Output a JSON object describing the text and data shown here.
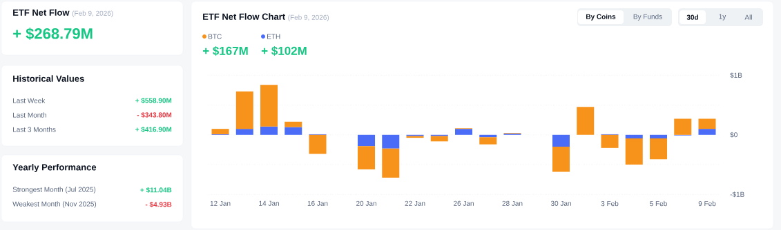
{
  "chart_data": [
    {
      "type": "other",
      "title": "ETF Net Flow",
      "subtitle": "(Feb 9, 2026)",
      "annotations": [
        "+ $268.79M"
      ]
    },
    {
      "type": "other",
      "title": "Historical Values",
      "categories": [
        "Last Week",
        "Last Month",
        "Last 3 Months"
      ],
      "annotations": [
        "+ $558.90M",
        "- $343.80M",
        "+ $416.90M"
      ]
    },
    {
      "type": "other",
      "title": "Yearly Performance",
      "categories": [
        "Strongest Month (Jul 2025)",
        "Weakest Month (Nov 2025)"
      ],
      "annotations": [
        "+ $11.04B",
        "- $4.93B"
      ]
    },
    {
      "type": "bar",
      "title": "ETF Net Flow Chart",
      "subtitle": "(Feb 9, 2026)",
      "stacked": true,
      "legend": "top left",
      "grid": "y",
      "categories": [
        "12 Jan",
        null,
        "14 Jan",
        null,
        "16 Jan",
        null,
        "20 Jan",
        null,
        "22 Jan",
        null,
        "26 Jan",
        null,
        "28 Jan",
        null,
        "30 Jan",
        null,
        "3 Feb",
        null,
        "5 Feb",
        null,
        "9 Feb"
      ],
      "series": [
        {
          "name": "ETH",
          "color": "#4a6cf7",
          "values": [
            0.01,
            0.1,
            0.14,
            0.13,
            0.01,
            null,
            -0.19,
            -0.23,
            -0.02,
            -0.02,
            0.1,
            -0.04,
            0.02,
            null,
            -0.2,
            null,
            0.01,
            -0.06,
            -0.06,
            -0.01,
            0.1
          ]
        },
        {
          "name": "BTC",
          "color": "#f7931a",
          "values": [
            0.09,
            0.63,
            0.7,
            0.09,
            -0.32,
            null,
            -0.39,
            -0.49,
            -0.03,
            -0.09,
            0.01,
            -0.12,
            0.01,
            null,
            -0.42,
            0.47,
            -0.22,
            -0.44,
            -0.35,
            0.27,
            0.17
          ]
        }
      ],
      "ylim": [
        -1,
        1
      ],
      "yticks": [
        {
          "value": -1,
          "label": "-$1B"
        },
        {
          "value": -0.5,
          "label": null
        },
        {
          "value": 0,
          "label": "$0"
        },
        {
          "value": 0.5,
          "label": null
        },
        {
          "value": 1,
          "label": "$1B"
        }
      ],
      "annotations": [
        "+ $167M",
        "+ $102M",
        "By Coins",
        "By Funds",
        "30d",
        "1y",
        "All"
      ]
    }
  ]
}
